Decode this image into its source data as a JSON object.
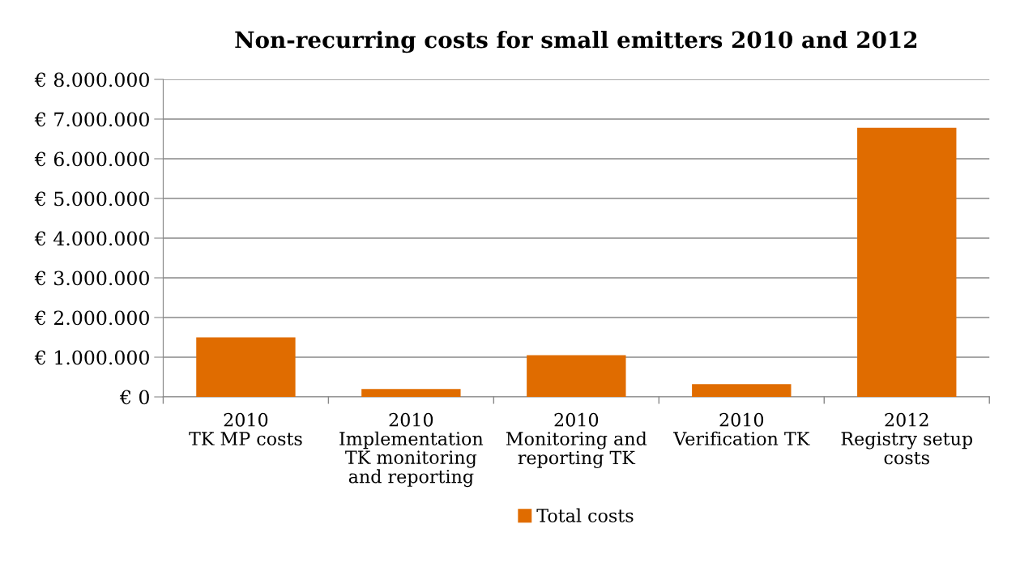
{
  "chart_data": {
    "type": "bar",
    "title": "Non-recurring costs for small emitters 2010 and 2012",
    "categories": [
      "2010\nTK MP costs",
      "2010\nImplementation\nTK monitoring\nand reporting",
      "2010\nMonitoring and\nreporting TK",
      "2010\nVerification TK",
      "2012\nRegistry setup\ncosts"
    ],
    "series": [
      {
        "name": "Total costs",
        "color": "#e06c00",
        "values": [
          1500000,
          200000,
          1050000,
          320000,
          6780000
        ]
      }
    ],
    "ylim": [
      0,
      8000000
    ],
    "yticks": [
      {
        "value": 0,
        "label": "€ 0"
      },
      {
        "value": 1000000,
        "label": "€ 1.000.000"
      },
      {
        "value": 2000000,
        "label": "€ 2.000.000"
      },
      {
        "value": 3000000,
        "label": "€ 3.000.000"
      },
      {
        "value": 4000000,
        "label": "€ 4.000.000"
      },
      {
        "value": 5000000,
        "label": "€ 5.000.000"
      },
      {
        "value": 6000000,
        "label": "€ 6.000.000"
      },
      {
        "value": 7000000,
        "label": "€ 7.000.000"
      },
      {
        "value": 8000000,
        "label": "€ 8.000.000"
      }
    ],
    "grid": "y",
    "legend": "bottom"
  }
}
